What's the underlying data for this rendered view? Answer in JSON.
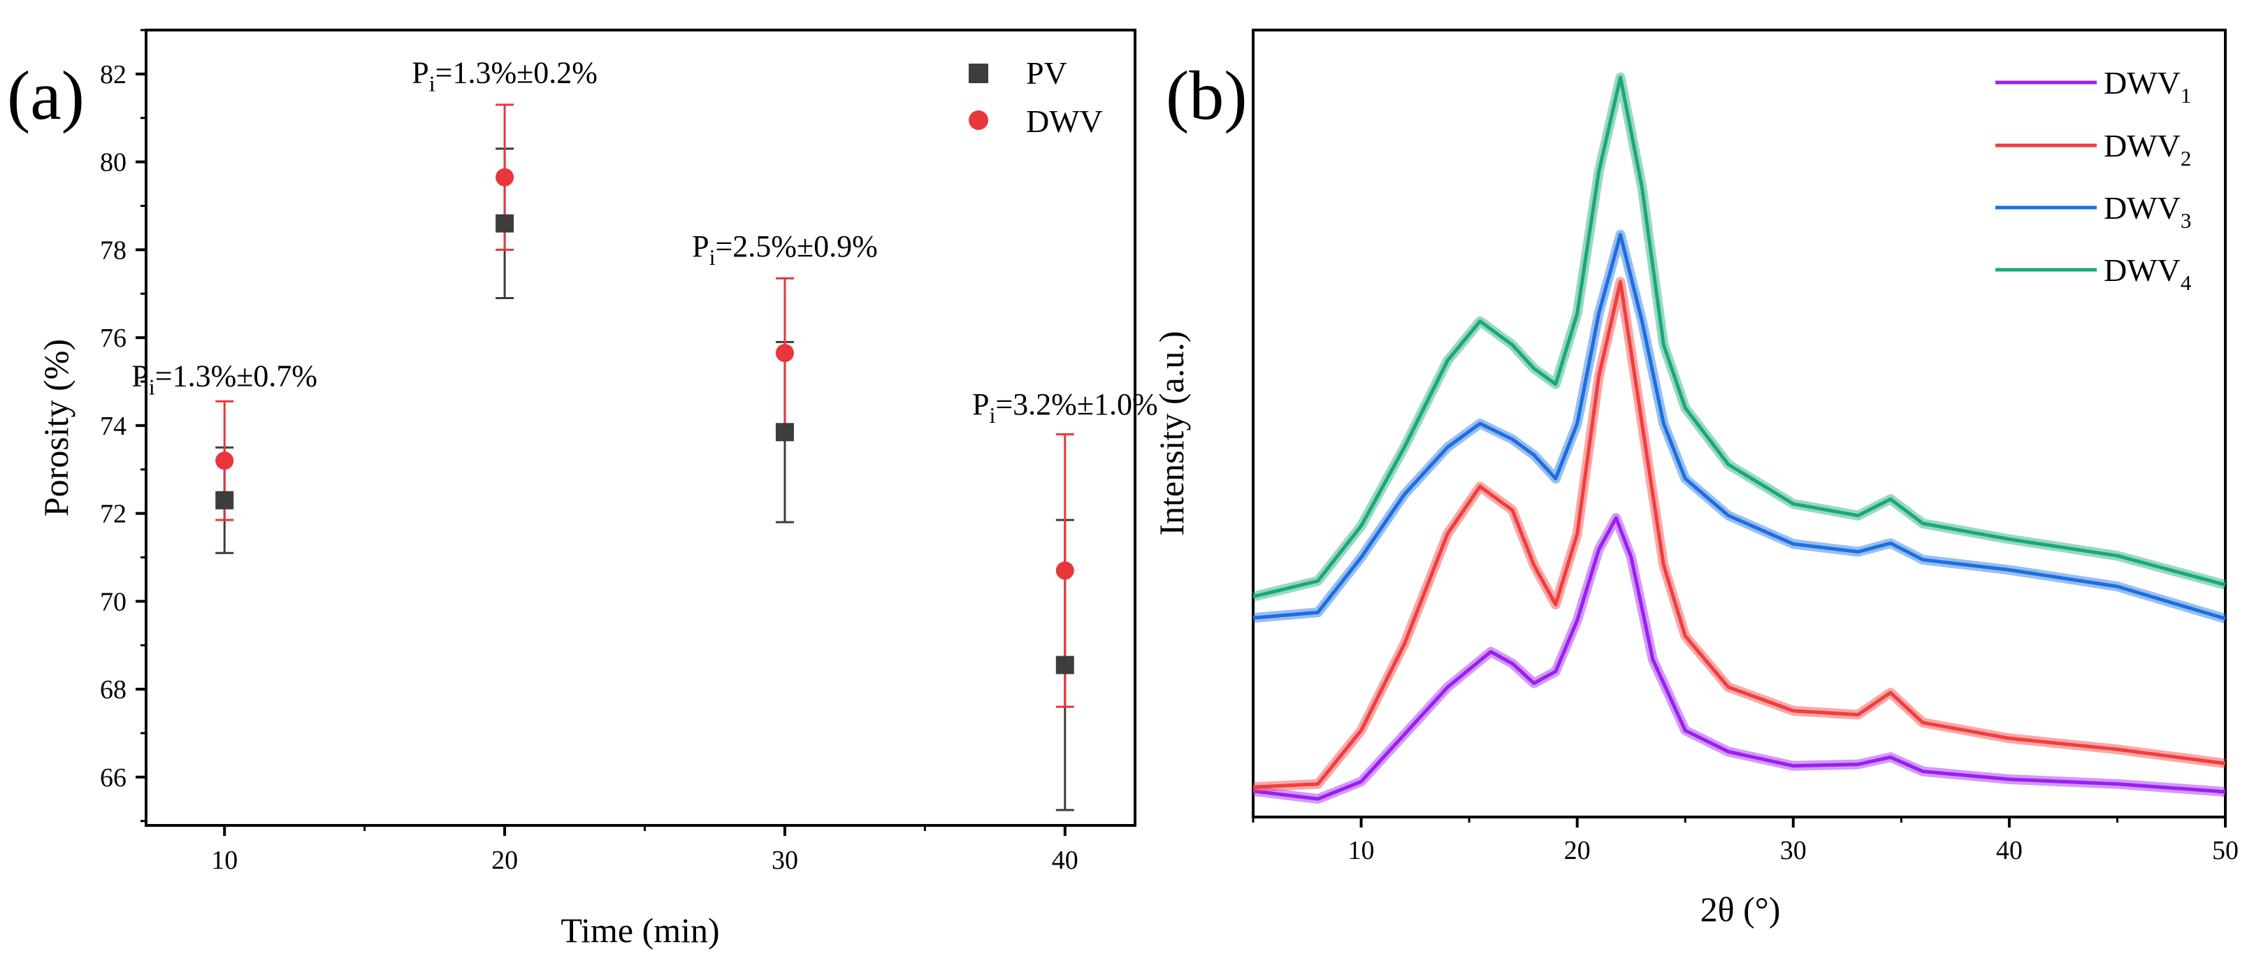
{
  "chart_data": [
    {
      "type": "scatter",
      "panel_label": "(a)",
      "xlabel": "Time (min)",
      "ylabel": "Porosity (%)",
      "xlim": [
        7.2,
        42.5
      ],
      "ylim": [
        64.9,
        83
      ],
      "xticks": [
        10,
        20,
        30,
        40
      ],
      "yticks": [
        66,
        68,
        70,
        72,
        74,
        76,
        78,
        80,
        82
      ],
      "legend_position": "top-right",
      "series": [
        {
          "name": "PV",
          "marker": "square",
          "color": "#3d3d3d",
          "error_color": "#3d3d3d",
          "x": [
            10,
            20,
            30,
            40
          ],
          "y": [
            72.3,
            78.6,
            73.85,
            68.55
          ],
          "err": [
            1.2,
            1.7,
            2.05,
            3.3
          ]
        },
        {
          "name": "DWV",
          "marker": "circle",
          "color": "#e8363c",
          "error_color": "#e8363c",
          "x": [
            10,
            20,
            30,
            40
          ],
          "y": [
            73.2,
            79.65,
            75.65,
            70.7
          ],
          "err": [
            1.35,
            1.65,
            1.7,
            3.1
          ]
        }
      ],
      "annotations": [
        {
          "main": "P",
          "sub": "i",
          "rest": "=1.3%±0.7%",
          "x": 10,
          "y": 74.9
        },
        {
          "main": "P",
          "sub": "i",
          "rest": "=1.3%±0.2%",
          "x": 20,
          "y": 81.8
        },
        {
          "main": "P",
          "sub": "i",
          "rest": "=2.5%±0.9%",
          "x": 30,
          "y": 77.85
        },
        {
          "main": "P",
          "sub": "i",
          "rest": "=3.2%±1.0%",
          "x": 40,
          "y": 74.25
        }
      ]
    },
    {
      "type": "line",
      "panel_label": "(b)",
      "xlabel": "2θ (°)",
      "ylabel": "Intensity (a.u.)",
      "xlim": [
        5,
        50
      ],
      "ylim": [
        0,
        100
      ],
      "xticks": [
        10,
        20,
        30,
        40,
        50
      ],
      "legend_position": "top-right",
      "series": [
        {
          "name": "DWV",
          "subscript": "1",
          "color": "#9b1ef2",
          "x": [
            5,
            8,
            10,
            12,
            14,
            16,
            17,
            18,
            19,
            20,
            21,
            21.8,
            22.5,
            23.5,
            25,
            27,
            30,
            33,
            34.5,
            36,
            40,
            45,
            50
          ],
          "y": [
            3.3,
            2.3,
            4.5,
            10.5,
            16.5,
            21,
            19.5,
            17,
            18.5,
            25,
            34,
            38,
            33,
            20,
            11,
            8.3,
            6.5,
            6.7,
            7.6,
            5.8,
            4.8,
            4.2,
            3.2
          ]
        },
        {
          "name": "DWV",
          "subscript": "2",
          "color": "#f23d3d",
          "x": [
            5,
            8,
            10,
            12,
            14,
            15.5,
            17,
            18,
            19,
            20,
            21,
            22,
            23,
            24,
            25,
            27,
            30,
            33,
            34.5,
            36,
            40,
            45,
            50
          ],
          "y": [
            3.8,
            4.2,
            11,
            22,
            36,
            42,
            39,
            32,
            27,
            36,
            56,
            68,
            50,
            32,
            23,
            16.5,
            13.5,
            13,
            15.8,
            12,
            10,
            8.6,
            6.8
          ]
        },
        {
          "name": "DWV",
          "subscript": "3",
          "color": "#1b6fe0",
          "x": [
            5,
            8,
            10,
            12,
            14,
            15.5,
            17,
            18,
            19,
            20,
            21,
            22,
            23,
            24,
            25,
            27,
            30,
            33,
            34.5,
            36,
            40,
            45,
            50
          ],
          "y": [
            25.3,
            26,
            33,
            41,
            47,
            50,
            48,
            46,
            43,
            50,
            64,
            74,
            63,
            50,
            43,
            38.3,
            34.7,
            33.7,
            34.8,
            32.7,
            31.4,
            29.3,
            25.2
          ]
        },
        {
          "name": "DWV",
          "subscript": "4",
          "color": "#1aa87a",
          "x": [
            5,
            8,
            10,
            12,
            14,
            15.5,
            17,
            18,
            19,
            20,
            21,
            22,
            23,
            24,
            25,
            27,
            30,
            33,
            34.5,
            36,
            40,
            45,
            50
          ],
          "y": [
            28,
            30,
            37,
            47,
            58,
            63,
            60,
            57,
            55,
            64,
            82,
            94,
            80,
            60,
            52,
            44.8,
            39.8,
            38.3,
            40.4,
            37.3,
            35.3,
            33.2,
            29.5
          ]
        }
      ]
    }
  ]
}
